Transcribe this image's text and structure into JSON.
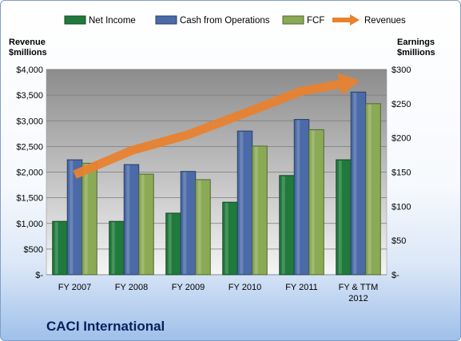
{
  "chart_data": {
    "type": "bar",
    "categories": [
      "FY 2007",
      "FY 2008",
      "FY 2009",
      "FY 2010",
      "FY 2011",
      "FY & TTM 2012"
    ],
    "series": [
      {
        "name": "Net Income",
        "axis": "right",
        "color": "#1f7a3c",
        "values": [
          78,
          78,
          90,
          106,
          145,
          168
        ]
      },
      {
        "name": "Cash from Operations",
        "axis": "right",
        "color": "#4a6aa8",
        "values": [
          168,
          161,
          151,
          210,
          227,
          267
        ]
      },
      {
        "name": "FCF",
        "axis": "right",
        "color": "#8aaa55",
        "values": [
          163,
          147,
          139,
          188,
          212,
          250
        ]
      },
      {
        "name": "Revenues",
        "axis": "left",
        "type": "arrow",
        "color": "#e8822f",
        "values": [
          1950,
          2420,
          2730,
          3150,
          3580,
          3780
        ]
      }
    ],
    "left_axis": {
      "title_lines": [
        "Revenue",
        "$millions"
      ],
      "ylim": [
        0,
        4000
      ],
      "ticks": [
        0,
        500,
        1000,
        1500,
        2000,
        2500,
        3000,
        3500,
        4000
      ],
      "tick_labels": [
        "$-",
        "$500",
        "$1,000",
        "$1,500",
        "$2,000",
        "$2,500",
        "$3,000",
        "$3,500",
        "$4,000"
      ]
    },
    "right_axis": {
      "title_lines": [
        "Earnings",
        "$millions"
      ],
      "ylim": [
        0,
        300
      ],
      "ticks": [
        0,
        50,
        100,
        150,
        200,
        250,
        300
      ],
      "tick_labels": [
        "$-",
        "$50",
        "$100",
        "$150",
        "$200",
        "$250",
        "$300"
      ]
    },
    "grid": true,
    "legend_position": "top"
  },
  "company_name": "CACI International"
}
